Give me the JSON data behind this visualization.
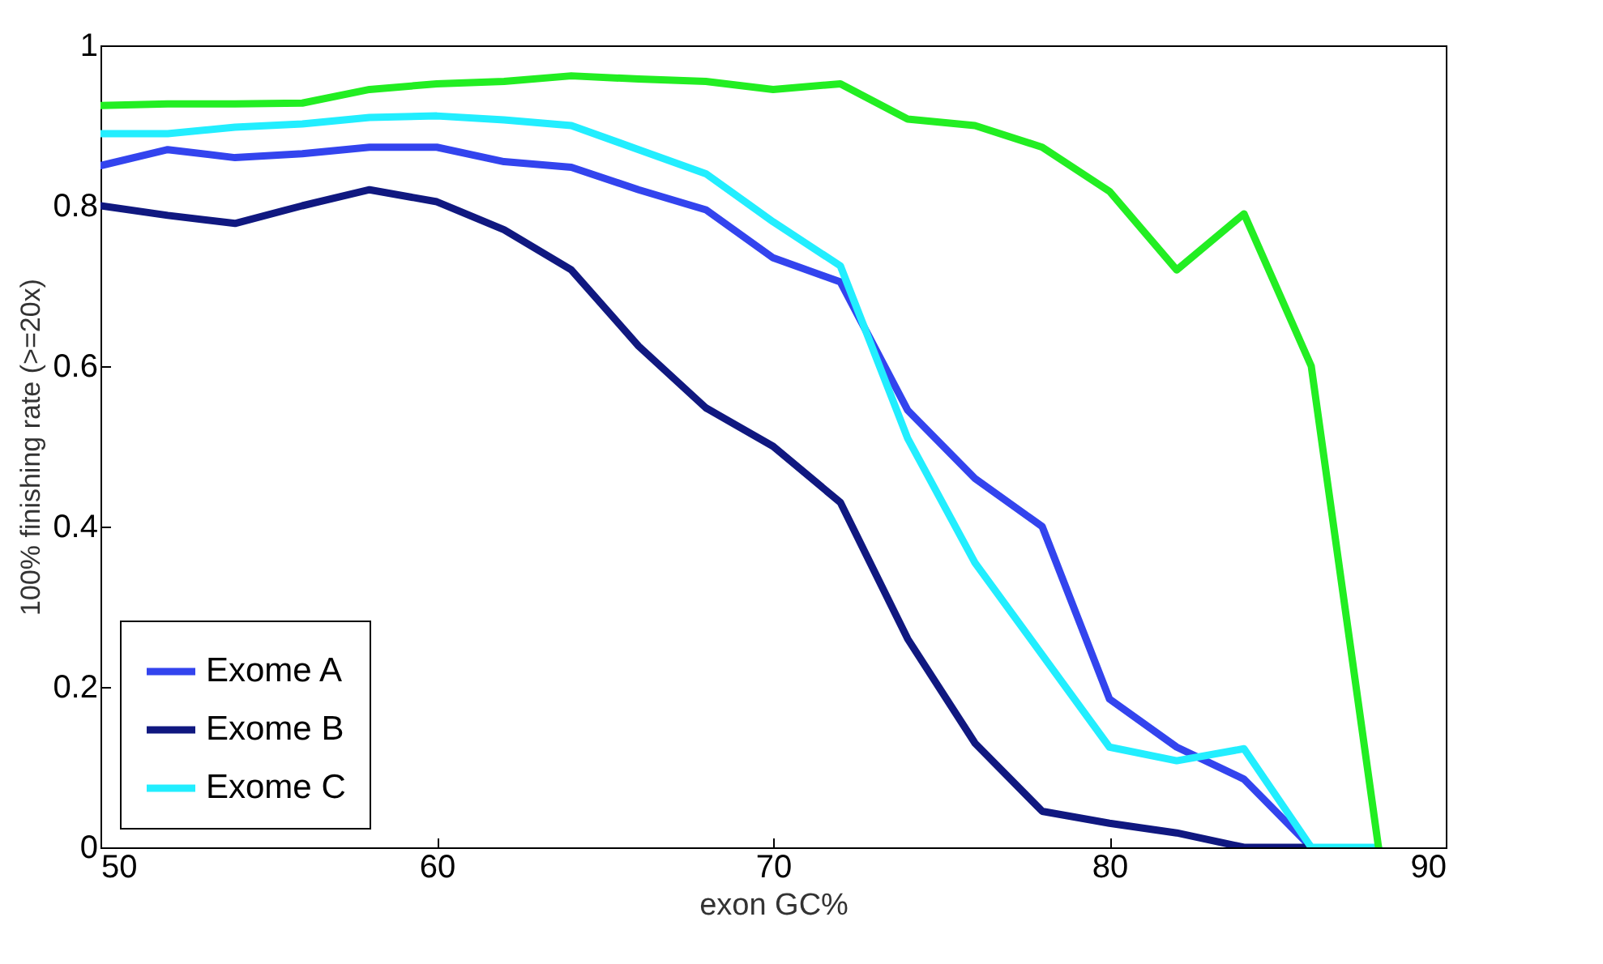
{
  "chart_data": {
    "type": "line",
    "xlabel": "exon GC%",
    "ylabel": "100% finishing rate (>=20x)",
    "x": [
      50,
      52,
      54,
      56,
      58,
      60,
      62,
      64,
      66,
      68,
      70,
      72,
      74,
      76,
      78,
      80,
      82,
      84,
      86,
      88
    ],
    "series": [
      {
        "name": "Exome A",
        "color": "#3344ee",
        "values": [
          0.85,
          0.87,
          0.86,
          0.865,
          0.873,
          0.873,
          0.855,
          0.848,
          0.82,
          0.795,
          0.735,
          0.705,
          0.545,
          0.46,
          0.4,
          0.185,
          0.125,
          0.085,
          0,
          null
        ]
      },
      {
        "name": "Exome B",
        "color": "#101880",
        "values": [
          0.8,
          0.788,
          0.778,
          0.8,
          0.82,
          0.805,
          0.77,
          0.72,
          0.625,
          0.548,
          0.5,
          0.43,
          0.26,
          0.13,
          0.045,
          0.03,
          0.018,
          0,
          0,
          null
        ]
      },
      {
        "name": "Exome C",
        "color": "#22eeff",
        "values": [
          0.89,
          0.89,
          0.898,
          0.902,
          0.91,
          0.912,
          0.907,
          0.9,
          0.87,
          0.84,
          0.78,
          0.725,
          0.51,
          0.355,
          0.24,
          0.125,
          0.108,
          0.123,
          0,
          0
        ]
      },
      {
        "color": "#22ee22",
        "values": [
          0.925,
          0.927,
          0.927,
          0.928,
          0.945,
          0.952,
          0.955,
          0.962,
          0.958,
          0.955,
          0.945,
          0.952,
          0.908,
          0.9,
          0.873,
          0.818,
          0.72,
          0.79,
          0.6,
          0
        ]
      }
    ],
    "xlim": [
      50,
      90
    ],
    "xticks": [
      50,
      60,
      70,
      80,
      90
    ],
    "ylim": [
      0,
      1
    ],
    "yticks": [
      0,
      0.2,
      0.4,
      0.6,
      0.8,
      1
    ],
    "grid": false,
    "legend": "bottom left",
    "marker": "none",
    "line_style": "solid"
  }
}
